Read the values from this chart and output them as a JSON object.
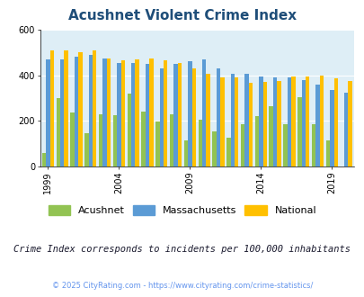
{
  "title": "Acushnet Violent Crime Index",
  "years": [
    1999,
    2000,
    2001,
    2002,
    2003,
    2004,
    2005,
    2006,
    2007,
    2008,
    2009,
    2010,
    2011,
    2012,
    2013,
    2014,
    2015,
    2016,
    2017,
    2018,
    2019,
    2020
  ],
  "acushnet": [
    60,
    300,
    235,
    145,
    230,
    225,
    320,
    240,
    195,
    230,
    115,
    205,
    155,
    125,
    185,
    220,
    265,
    185,
    305,
    185,
    115,
    0
  ],
  "massachusetts": [
    470,
    470,
    480,
    490,
    475,
    455,
    455,
    450,
    430,
    450,
    460,
    470,
    430,
    405,
    405,
    395,
    390,
    390,
    380,
    360,
    335,
    325
  ],
  "national": [
    510,
    510,
    500,
    510,
    475,
    465,
    470,
    475,
    465,
    455,
    430,
    405,
    390,
    390,
    365,
    370,
    375,
    395,
    395,
    400,
    385,
    375
  ],
  "acushnet_color": "#92c353",
  "massachusetts_color": "#5b9bd5",
  "national_color": "#ffc000",
  "bg_color": "#deeef6",
  "fig_bg": "#ffffff",
  "ylim": [
    0,
    600
  ],
  "yticks": [
    0,
    200,
    400,
    600
  ],
  "xtick_years": [
    1999,
    2004,
    2009,
    2014,
    2019
  ],
  "subtitle": "Crime Index corresponds to incidents per 100,000 inhabitants",
  "footer": "© 2025 CityRating.com - https://www.cityrating.com/crime-statistics/",
  "title_color": "#1f4e79",
  "subtitle_color": "#1a1a2e",
  "footer_color": "#6495ed",
  "legend_labels": [
    "Acushnet",
    "Massachusetts",
    "National"
  ]
}
